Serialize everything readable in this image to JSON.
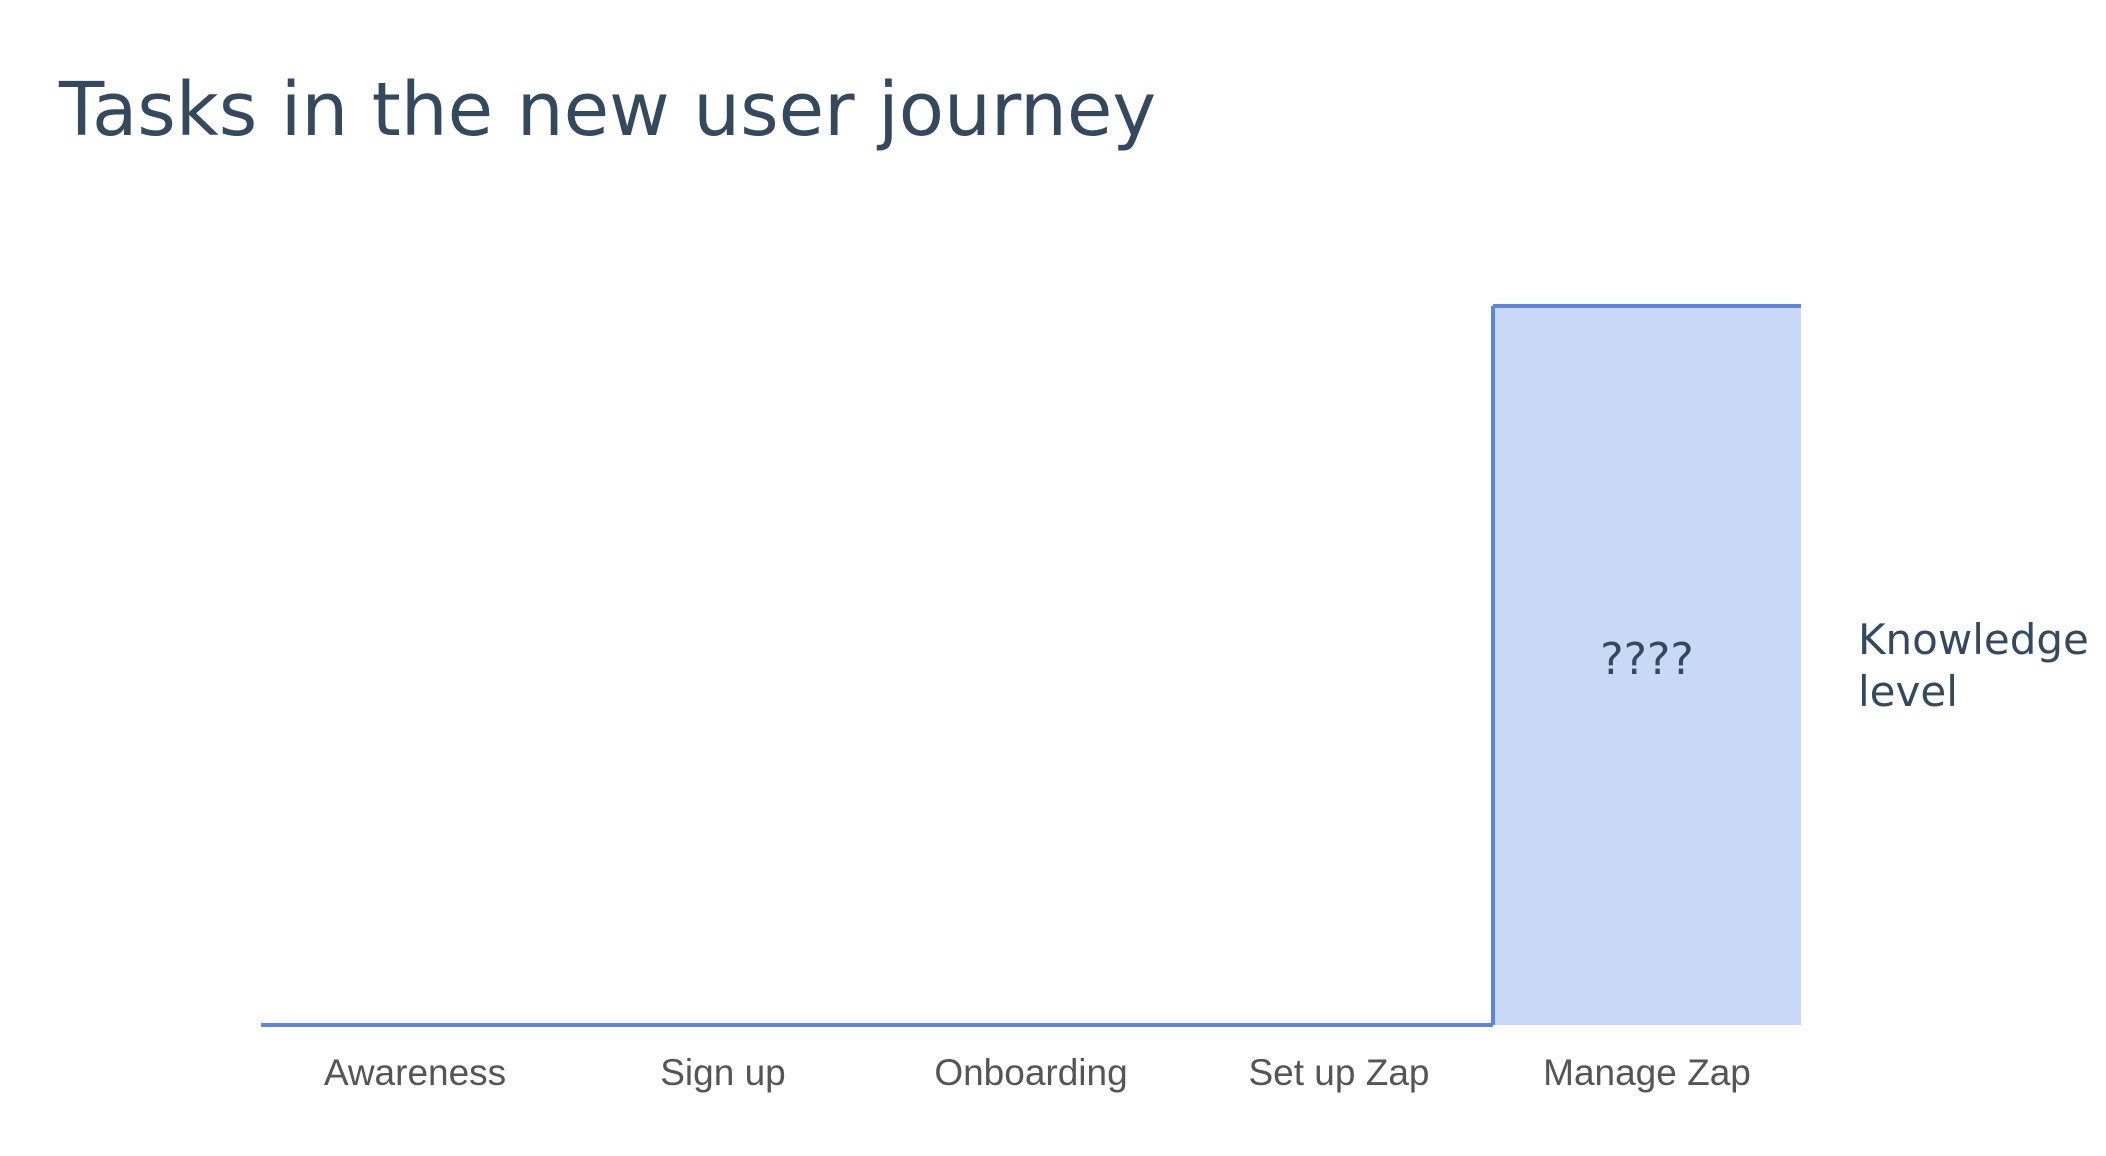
{
  "chart_data": {
    "type": "step",
    "title": "Tasks in the new user journey",
    "y_label": "Knowledge level",
    "annotation": "????",
    "categories": [
      "Awareness",
      "Sign up",
      "Onboarding",
      "Set up Zap",
      "Manage Zap"
    ],
    "values": [
      0,
      0,
      0,
      0,
      1
    ],
    "ylim": [
      0,
      1
    ],
    "color": "#5b85e0",
    "fill": "#c9d8f7"
  }
}
